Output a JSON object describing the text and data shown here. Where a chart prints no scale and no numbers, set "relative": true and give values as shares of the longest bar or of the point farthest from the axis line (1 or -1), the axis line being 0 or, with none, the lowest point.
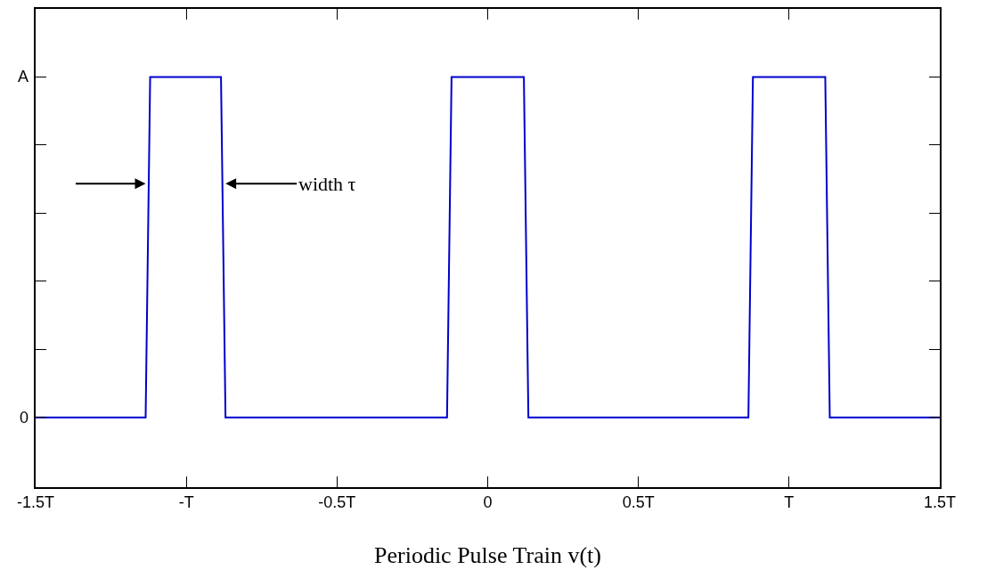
{
  "chart_data": {
    "type": "line",
    "xlabel": "Periodic Pulse Train v(t)",
    "x": [
      -1.5,
      -1.135,
      -1.12,
      -0.885,
      -0.87,
      -0.135,
      -0.12,
      0.12,
      0.135,
      0.865,
      0.88,
      1.12,
      1.135,
      1.5
    ],
    "series": [
      {
        "color": "#0000cc",
        "values": [
          0.17,
          0.17,
          1,
          1,
          0.17,
          0.17,
          1,
          1,
          0.17,
          0.17,
          1,
          1,
          0.17,
          0.17
        ]
      }
    ],
    "xlim": [
      -1.5,
      1.5
    ],
    "relative": true,
    "xticks": [
      {
        "value": -1.5,
        "label": "-1.5T"
      },
      {
        "value": -1,
        "label": "-T"
      },
      {
        "value": -0.5,
        "label": "-0.5T"
      },
      0,
      {
        "value": 0.5,
        "label": "0.5T"
      },
      {
        "value": 1,
        "label": "T"
      },
      {
        "value": 1.5,
        "label": "1.5T"
      }
    ],
    "annotations": [
      {
        "text": "width τ",
        "x": -0.87,
        "y": 0.74
      },
      "A",
      "0"
    ],
    "grid": false,
    "marker": "none",
    "line_style": "solid"
  }
}
